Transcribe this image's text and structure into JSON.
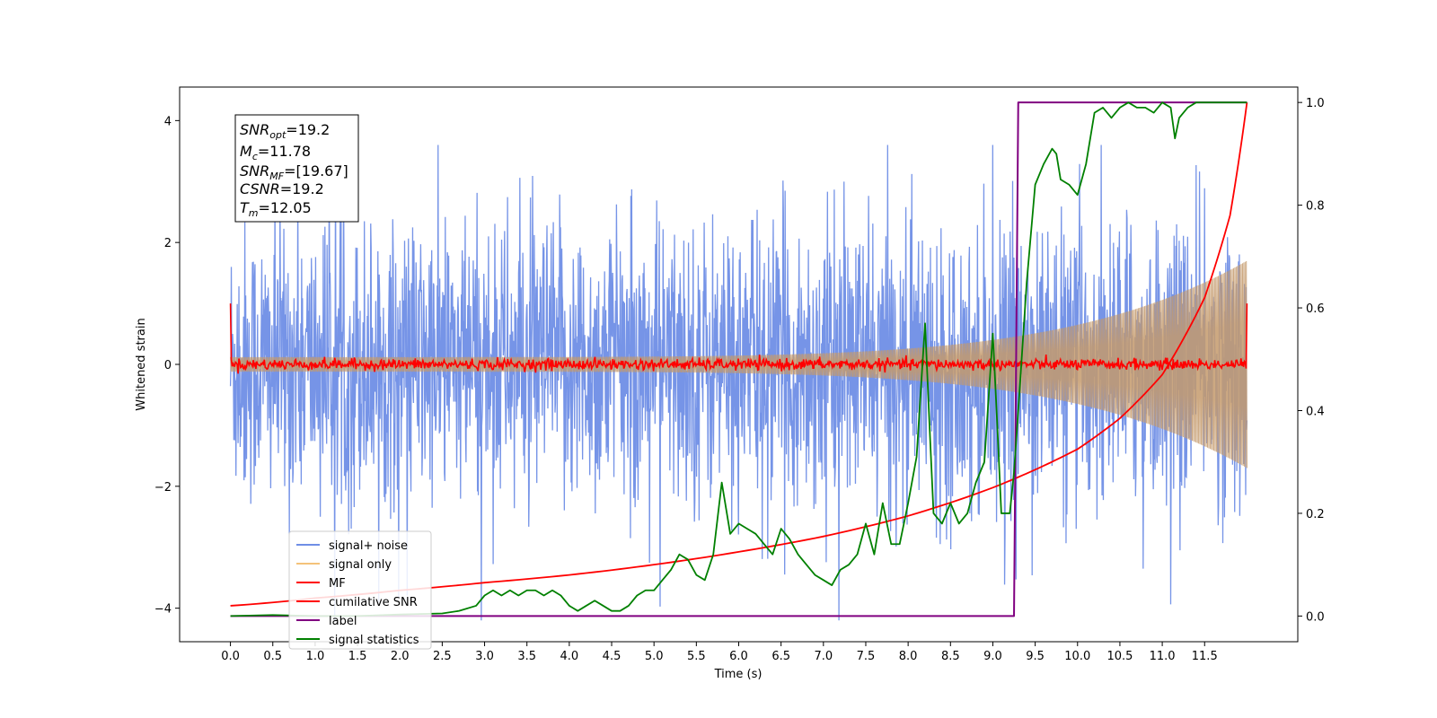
{
  "chart_data": {
    "type": "line",
    "xlabel": "Time (s)",
    "ylabel_left": "Whitened strain",
    "ylabel_right": "",
    "xlim": [
      -0.6,
      12.6
    ],
    "ylim_left": [
      -4.55,
      4.55
    ],
    "ylim_right": [
      -0.05,
      1.03
    ],
    "x_ticks": [
      "0.0",
      "0.5",
      "1.0",
      "1.5",
      "2.0",
      "2.5",
      "3.0",
      "3.5",
      "4.0",
      "4.5",
      "5.0",
      "5.5",
      "6.0",
      "6.5",
      "7.0",
      "7.5",
      "8.0",
      "8.5",
      "9.0",
      "9.5",
      "10.0",
      "10.5",
      "11.0",
      "11.5"
    ],
    "x_tick_values": [
      0,
      0.5,
      1,
      1.5,
      2,
      2.5,
      3,
      3.5,
      4,
      4.5,
      5,
      5.5,
      6,
      6.5,
      7,
      7.5,
      8,
      8.5,
      9,
      9.5,
      10,
      10.5,
      11,
      11.5
    ],
    "y_ticks_left": [
      "4",
      "2",
      "0",
      "−2",
      "−4"
    ],
    "y_tick_values_left": [
      4,
      2,
      0,
      -2,
      -4
    ],
    "y_ticks_right": [
      "1.0",
      "0.8",
      "0.6",
      "0.4",
      "0.2",
      "0.0"
    ],
    "y_tick_values_right": [
      1.0,
      0.8,
      0.6,
      0.4,
      0.2,
      0.0
    ],
    "annotation": {
      "snr_opt": {
        "main": "SNR",
        "sub": "opt",
        "value": "=19.2"
      },
      "mc": {
        "main": "M",
        "sub": "c",
        "value": "=11.78"
      },
      "snr_mf": {
        "main": "SNR",
        "sub": "MF",
        "value": "=[19.67]"
      },
      "csnr": {
        "main": "CSNR",
        "sub": "",
        "value": "=19.2"
      },
      "tm": {
        "main": "T",
        "sub": "m",
        "value": "=12.05"
      }
    },
    "legend_position": "lower-left",
    "series": [
      {
        "name": "signal+ noise",
        "color": "#6f8ee6",
        "axis": "left",
        "style": "noise",
        "amplitude_sigma": 1.0,
        "x_range": [
          0,
          12.0
        ]
      },
      {
        "name": "signal only",
        "color": "#f4c27a",
        "axis": "left",
        "style": "chirp",
        "amplitude_start": 0.12,
        "amplitude_end": 1.7,
        "x_range": [
          0,
          12.0
        ]
      },
      {
        "name": "MF",
        "color": "#ff0000",
        "axis": "left",
        "style": "mf",
        "values_desc": "near zero with small noise; spikes to 1.0 at t=0 and t=12.0",
        "x_range": [
          0,
          12.0
        ],
        "edge_value": 1.0
      },
      {
        "name": "cumilative SNR",
        "color": "#ff0000",
        "axis": "right",
        "x": [
          0.0,
          1.0,
          2.0,
          3.0,
          4.0,
          5.0,
          6.0,
          7.0,
          8.0,
          9.0,
          9.5,
          10.0,
          10.5,
          11.0,
          11.5,
          11.8,
          12.0
        ],
        "values": [
          0.02,
          0.035,
          0.05,
          0.065,
          0.08,
          0.1,
          0.125,
          0.155,
          0.195,
          0.25,
          0.285,
          0.325,
          0.385,
          0.47,
          0.62,
          0.78,
          1.0
        ]
      },
      {
        "name": "label",
        "color": "#800080",
        "axis": "right",
        "x": [
          0.0,
          9.25,
          9.3,
          12.0
        ],
        "values": [
          0.0,
          0.0,
          1.0,
          1.0
        ]
      },
      {
        "name": "signal statistics",
        "color": "#008000",
        "axis": "right",
        "x": [
          0.0,
          0.5,
          1.0,
          1.5,
          2.0,
          2.5,
          2.7,
          2.9,
          3.0,
          3.1,
          3.2,
          3.3,
          3.4,
          3.5,
          3.6,
          3.7,
          3.8,
          3.9,
          4.0,
          4.1,
          4.2,
          4.3,
          4.4,
          4.5,
          4.6,
          4.7,
          4.8,
          4.9,
          5.0,
          5.1,
          5.2,
          5.3,
          5.4,
          5.5,
          5.6,
          5.7,
          5.8,
          5.9,
          6.0,
          6.1,
          6.2,
          6.3,
          6.4,
          6.5,
          6.6,
          6.7,
          6.8,
          6.9,
          7.0,
          7.1,
          7.2,
          7.3,
          7.4,
          7.5,
          7.6,
          7.7,
          7.8,
          7.9,
          8.0,
          8.1,
          8.2,
          8.25,
          8.3,
          8.4,
          8.5,
          8.6,
          8.7,
          8.8,
          8.9,
          9.0,
          9.05,
          9.1,
          9.2,
          9.25,
          9.3,
          9.4,
          9.5,
          9.6,
          9.7,
          9.75,
          9.8,
          9.9,
          10.0,
          10.1,
          10.2,
          10.3,
          10.4,
          10.5,
          10.6,
          10.7,
          10.8,
          10.9,
          11.0,
          11.1,
          11.15,
          11.2,
          11.3,
          11.4,
          11.5,
          11.6,
          11.7,
          11.8,
          11.9,
          12.0
        ],
        "values": [
          0.0,
          0.002,
          0.0,
          0.0,
          0.003,
          0.005,
          0.01,
          0.02,
          0.04,
          0.05,
          0.04,
          0.05,
          0.04,
          0.05,
          0.05,
          0.04,
          0.05,
          0.04,
          0.02,
          0.01,
          0.02,
          0.03,
          0.02,
          0.01,
          0.01,
          0.02,
          0.04,
          0.05,
          0.05,
          0.07,
          0.09,
          0.12,
          0.11,
          0.08,
          0.07,
          0.12,
          0.26,
          0.16,
          0.18,
          0.17,
          0.16,
          0.14,
          0.12,
          0.17,
          0.15,
          0.12,
          0.1,
          0.08,
          0.07,
          0.06,
          0.09,
          0.1,
          0.12,
          0.18,
          0.12,
          0.22,
          0.14,
          0.14,
          0.22,
          0.31,
          0.57,
          0.38,
          0.2,
          0.18,
          0.22,
          0.18,
          0.2,
          0.26,
          0.3,
          0.55,
          0.38,
          0.2,
          0.2,
          0.28,
          0.4,
          0.65,
          0.84,
          0.88,
          0.91,
          0.9,
          0.85,
          0.84,
          0.82,
          0.88,
          0.98,
          0.99,
          0.97,
          0.99,
          1.0,
          0.99,
          0.99,
          0.98,
          1.0,
          0.99,
          0.93,
          0.97,
          0.99,
          1.0,
          1.0,
          1.0,
          1.0,
          1.0,
          1.0,
          1.0
        ]
      }
    ]
  }
}
